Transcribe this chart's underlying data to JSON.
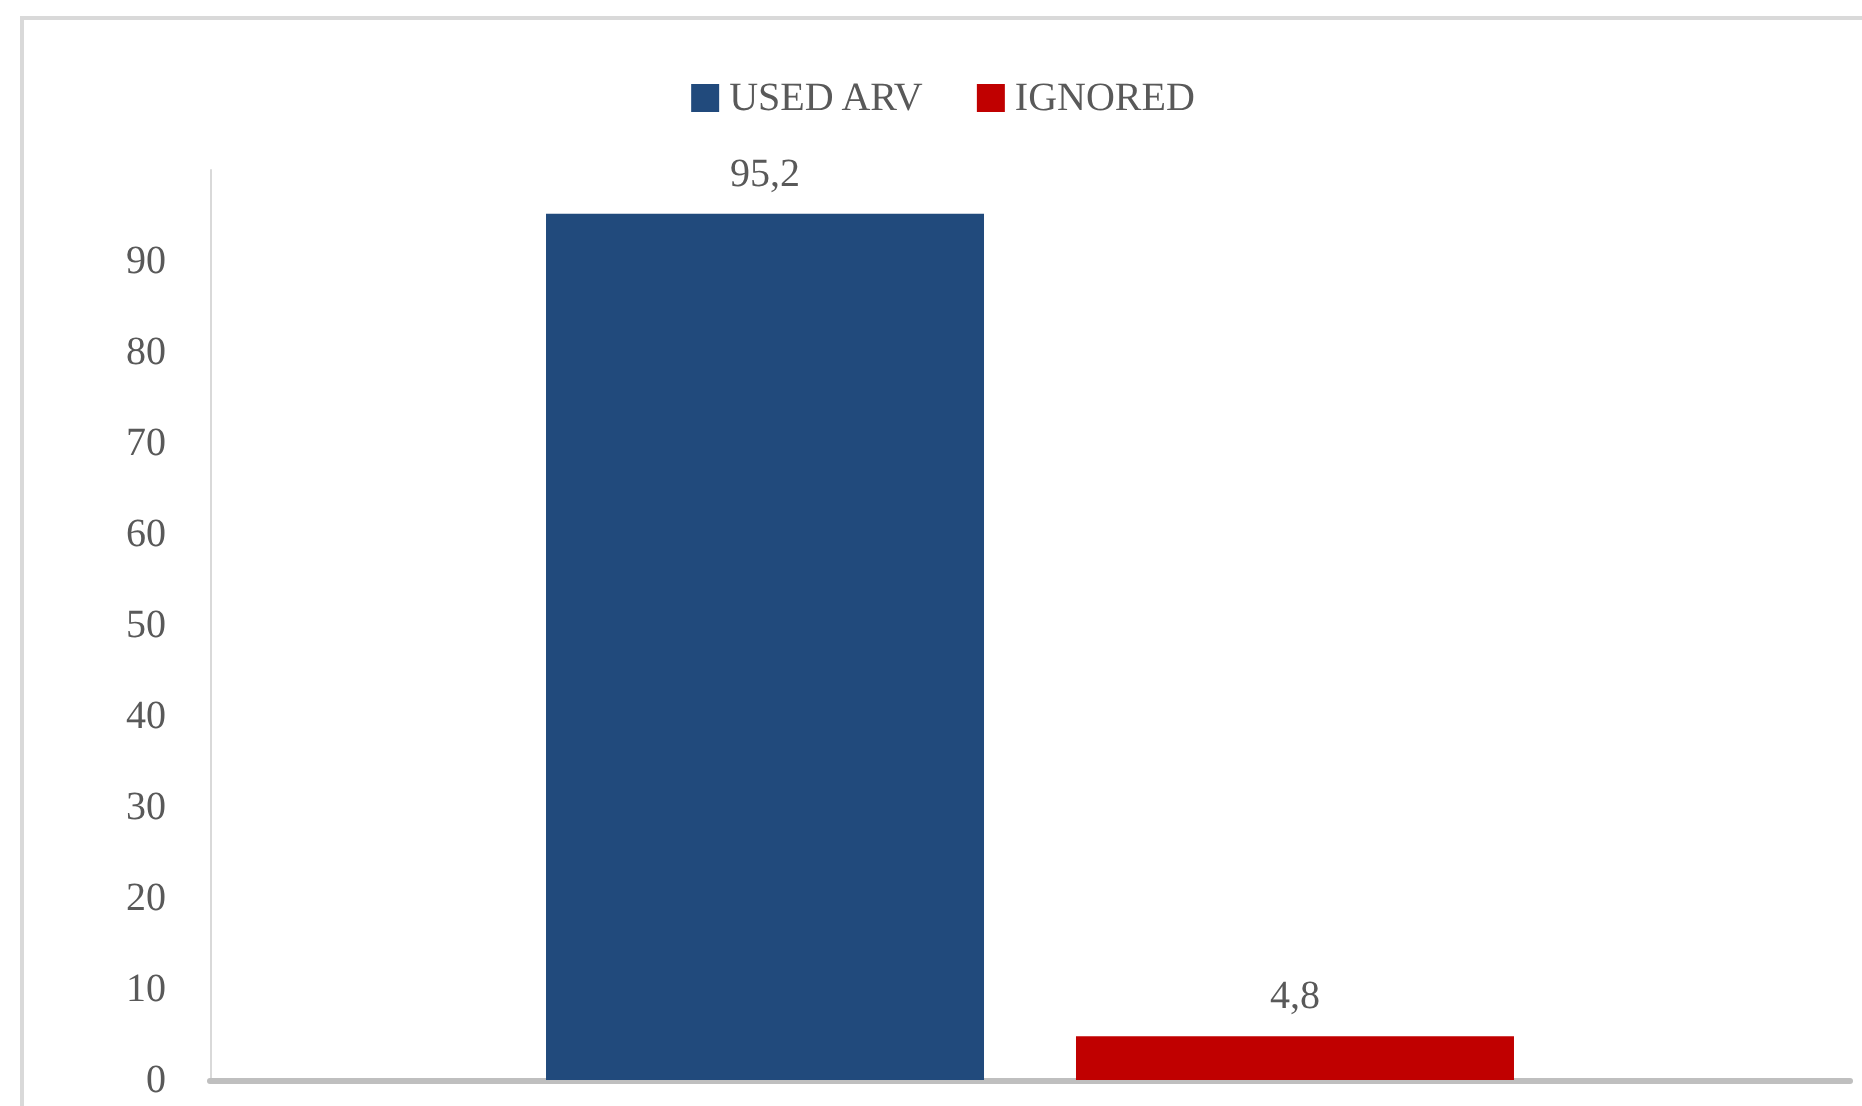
{
  "chart_data": {
    "type": "bar",
    "categories": [
      null
    ],
    "series": [
      {
        "name": "USED ARV",
        "color": "#214a7c",
        "values": [
          95.2
        ],
        "value_labels": [
          "95,2"
        ]
      },
      {
        "name": "IGNORED",
        "color": "#c00000",
        "values": [
          4.8
        ],
        "value_labels": [
          "4,8"
        ]
      }
    ],
    "ylim": [
      0,
      100
    ],
    "yticks": [
      0,
      10,
      20,
      30,
      40,
      50,
      60,
      70,
      80,
      90
    ],
    "grid": false,
    "legend": "top",
    "tick_labels": "y"
  }
}
